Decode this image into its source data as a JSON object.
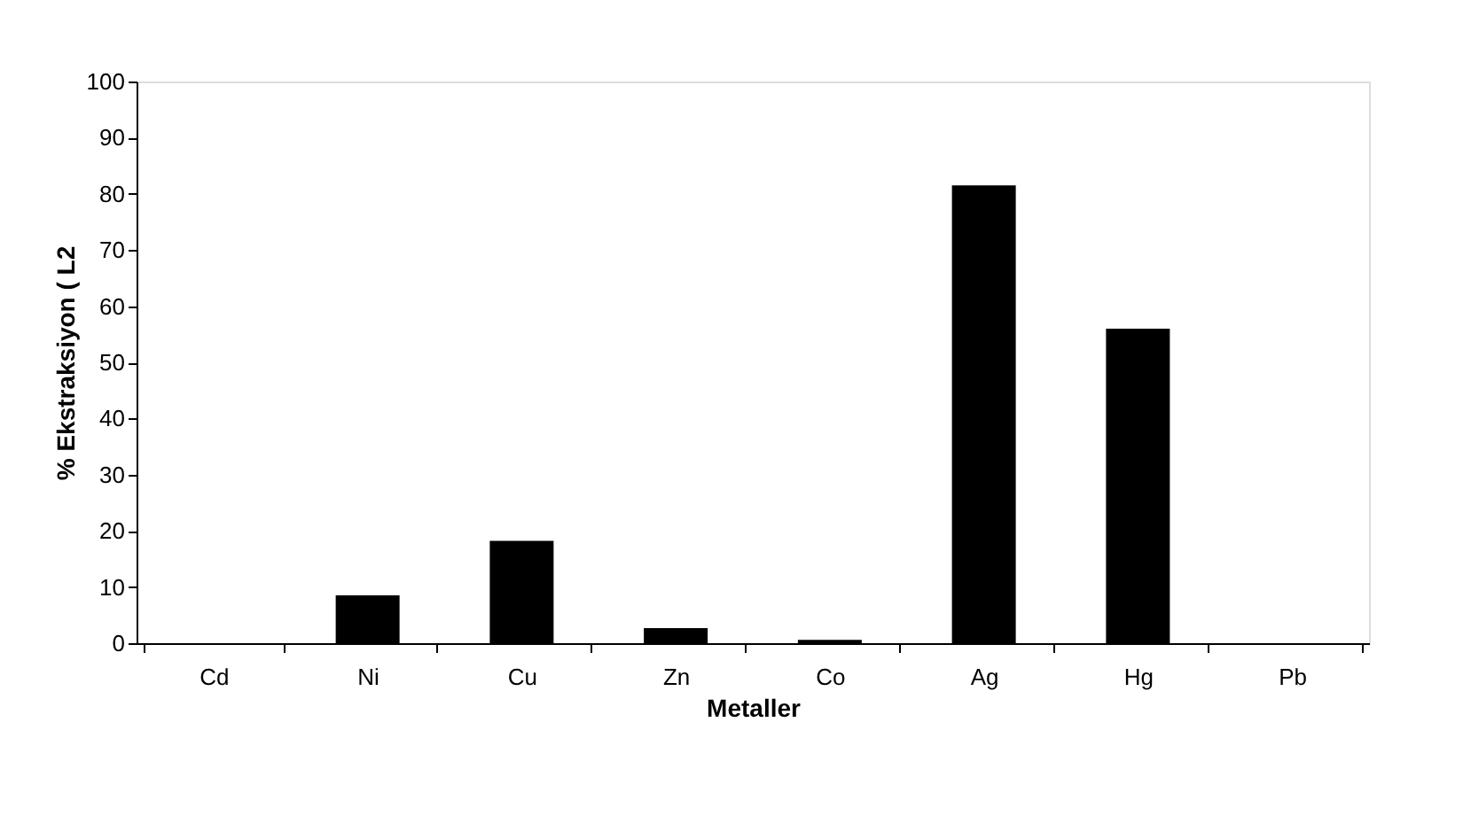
{
  "chart_data": {
    "type": "bar",
    "xlabel": "Metaller",
    "ylabel": "% Ekstraksiyon ( L2",
    "categories": [
      "Cd",
      "Ni",
      "Cu",
      "Zn",
      "Co",
      "Ag",
      "Hg",
      "Pb"
    ],
    "values": [
      0,
      8.5,
      18.2,
      2.7,
      0.6,
      81.5,
      56,
      0
    ],
    "color": "#000000",
    "ylim": [
      0,
      100
    ],
    "yticks": [
      0,
      10,
      20,
      30,
      40,
      50,
      60,
      70,
      80,
      90,
      100
    ],
    "grid": false
  }
}
